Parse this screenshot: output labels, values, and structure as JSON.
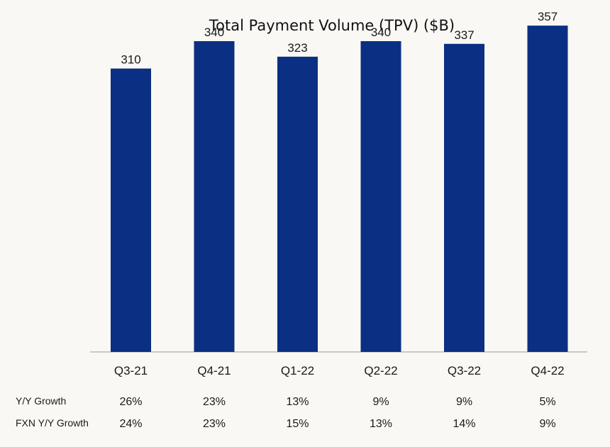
{
  "chart_data": {
    "type": "bar",
    "title": "Total Payment Volume (TPV) ($B)",
    "categories": [
      "Q3-21",
      "Q4-21",
      "Q1-22",
      "Q2-22",
      "Q3-22",
      "Q4-22"
    ],
    "values": [
      310,
      340,
      323,
      340,
      337,
      357
    ],
    "ylim": [
      0,
      385
    ],
    "grid": false,
    "bar_color": "#0b2f82",
    "table_rows": [
      {
        "label": "Y/Y Growth",
        "values": [
          "26%",
          "23%",
          "13%",
          "9%",
          "9%",
          "5%"
        ]
      },
      {
        "label": "FXN Y/Y Growth",
        "values": [
          "24%",
          "23%",
          "15%",
          "13%",
          "14%",
          "9%"
        ]
      }
    ]
  }
}
